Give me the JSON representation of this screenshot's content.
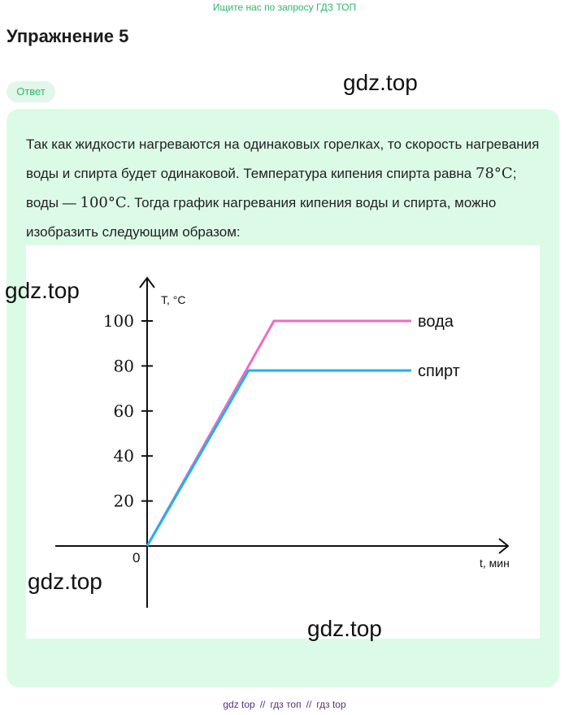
{
  "banner": {
    "text": "Ищите нас по запросу ГДЗ ТОП"
  },
  "page_title": "Упражнение 5",
  "answer_badge": "Ответ",
  "answer": {
    "text_part1": "Так как жидкости нагреваются на одинаковых горелках, то скорость нагревания воды и спирта будет одинаковой. Температура кипения спирта равна ",
    "temp_spirit": "78°C",
    "text_part2": "; воды — ",
    "temp_water": "100°C",
    "text_part3": ". Тогда график нагревания кипения воды и спирта, можно изобразить следующим образом:"
  },
  "watermarks": [
    "gdz.top",
    "gdz.top",
    "gdz.top",
    "gdz.top"
  ],
  "chart_data": {
    "type": "line",
    "title": "",
    "xlabel": "t, мин",
    "ylabel": "T, °C",
    "origin_label": "0",
    "yticks": [
      20,
      40,
      60,
      80,
      100
    ],
    "ylim": [
      0,
      100
    ],
    "xlim": [
      0,
      16
    ],
    "grid": false,
    "legend": "inline-right",
    "series": [
      {
        "name": "вода",
        "color": "#f06cbf",
        "points": [
          [
            0,
            0
          ],
          [
            6,
            100
          ],
          [
            12.5,
            100
          ]
        ]
      },
      {
        "name": "спирт",
        "color": "#1fb1ee",
        "points": [
          [
            0,
            0
          ],
          [
            4.8,
            78
          ],
          [
            12.5,
            78
          ]
        ]
      }
    ]
  },
  "footer": {
    "links": [
      "gdz top",
      "гдз топ",
      "гдз top"
    ],
    "separator": "//"
  }
}
